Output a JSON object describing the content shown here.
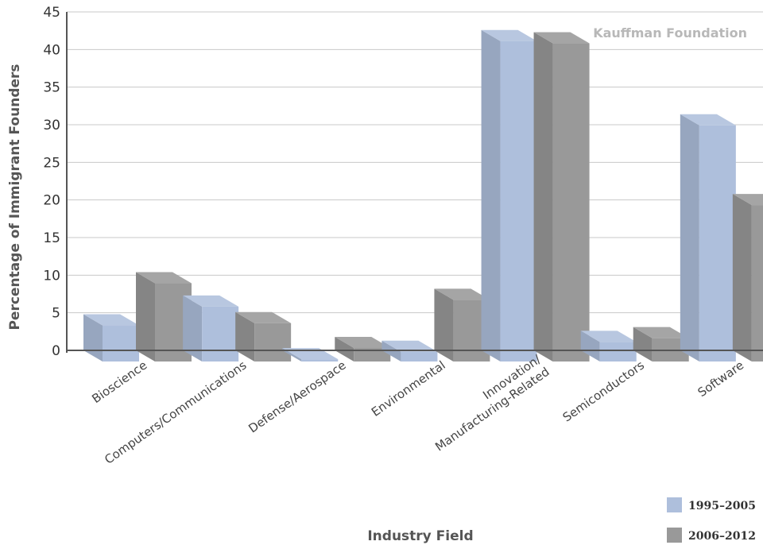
{
  "chart_data": {
    "type": "bar",
    "title": "",
    "watermark": "Kauffman Foundation",
    "xlabel": "Industry Field",
    "ylabel": "Percentage of Immigrant Founders",
    "ylim": [
      0,
      45
    ],
    "yticks": [
      0,
      5,
      10,
      15,
      20,
      25,
      30,
      35,
      40,
      45
    ],
    "grid": true,
    "legend_position": "bottom-right",
    "categories": [
      [
        "Bioscience"
      ],
      [
        "Computers/Communications"
      ],
      [
        "Defense/Aerospace"
      ],
      [
        "Environmental"
      ],
      [
        "Innovation/",
        "Manufacturing-Related"
      ],
      [
        "Semiconductors"
      ],
      [
        "Software"
      ]
    ],
    "series": [
      {
        "name": "1995–2005",
        "color": "#aebfdc",
        "values": [
          4.8,
          7.3,
          0.3,
          1.3,
          42.6,
          2.6,
          31.4
        ]
      },
      {
        "name": "2006–2012",
        "color": "#999999",
        "values": [
          10.4,
          5.1,
          1.8,
          8.2,
          42.3,
          3.1,
          20.8
        ]
      }
    ]
  }
}
